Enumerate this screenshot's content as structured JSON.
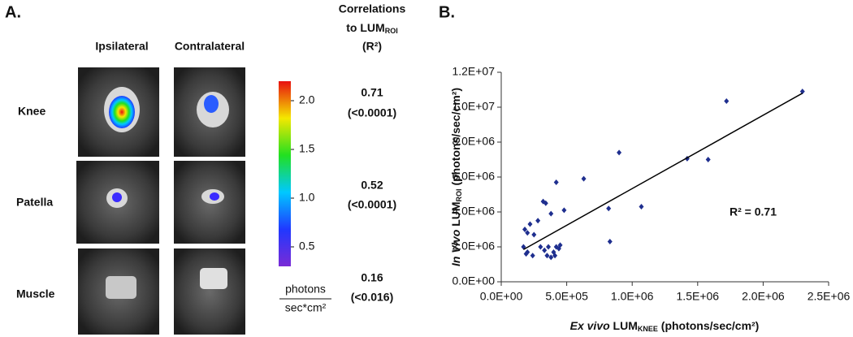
{
  "panel_a": {
    "label": "A.",
    "columns": [
      "Ipsilateral",
      "Contralateral"
    ],
    "rows": [
      "Knee",
      "Patella",
      "Muscle"
    ],
    "colorbar": {
      "lim": [
        0.3,
        2.2
      ],
      "ticks": [
        0.5,
        {
          "value": 1.0,
          "label": "1.0"
        },
        1.5,
        {
          "value": 2.0,
          "label": "2.0"
        }
      ],
      "unit_top": "photons",
      "unit_bottom": "sec*cm²"
    },
    "corr_header": {
      "line1": "Correlations",
      "line2": "to LUM",
      "line2_sub": "ROI",
      "line3": "(R²)"
    },
    "correlations": [
      {
        "r2": "0.71",
        "p": "(<0.0001)"
      },
      {
        "r2": "0.52",
        "p": "(<0.0001)"
      },
      {
        "r2": "0.16",
        "p": "(<0.016)"
      }
    ]
  },
  "chart_data": {
    "type": "scatter",
    "panel_label": "B.",
    "xlabel": {
      "italic": "Ex vivo",
      "main": " LUM",
      "sub": "KNEE",
      "rest": " (photons/sec/cm²)"
    },
    "ylabel": {
      "italic": "In Vivo",
      "main": " LUM",
      "sub": "ROI",
      "rest": " (photons/sec/cm²)"
    },
    "annotation": "R² = 0.71",
    "color": "#1f2f8f",
    "x": [
      2300000,
      1720000,
      1420000,
      1580000,
      1070000,
      630000,
      900000,
      420000,
      820000,
      830000,
      320000,
      340000,
      480000,
      380000,
      280000,
      220000,
      180000,
      200000,
      250000,
      170000,
      200000,
      240000,
      190000,
      300000,
      330000,
      350000,
      380000,
      400000,
      420000,
      450000,
      440000,
      410000,
      360000
    ],
    "values": [
      10900000,
      10350000,
      7050000,
      7000000,
      4300000,
      5900000,
      7400000,
      5700000,
      4200000,
      2300000,
      4600000,
      4500000,
      4100000,
      3900000,
      3500000,
      3300000,
      3000000,
      2800000,
      2700000,
      2000000,
      1700000,
      1500000,
      1600000,
      2000000,
      1800000,
      1500000,
      1400000,
      1700000,
      2000000,
      2100000,
      1900000,
      1500000,
      2000000
    ],
    "fit": {
      "x": [
        170000,
        2300000
      ],
      "y": [
        1850000,
        10800000
      ]
    },
    "xlim": [
      0,
      2500000
    ],
    "xticks": [
      {
        "value": 0,
        "label": "0.0E+00"
      },
      {
        "value": 500000,
        "label": "5.0E+05"
      },
      {
        "value": 1000000,
        "label": "1.0E+06"
      },
      {
        "value": 1500000,
        "label": "1.5E+06"
      },
      {
        "value": 2000000,
        "label": "2.0E+06"
      },
      {
        "value": 2500000,
        "label": "2.5E+06"
      }
    ],
    "ylim": [
      0,
      12000000
    ],
    "yticks": [
      {
        "value": 0,
        "label": "0.0E+00"
      },
      {
        "value": 2000000,
        "label": "2.0E+06"
      },
      {
        "value": 4000000,
        "label": "4.0E+06"
      },
      {
        "value": 6000000,
        "label": "6.0E+06"
      },
      {
        "value": 8000000,
        "label": "8.0E+06"
      },
      {
        "value": 10000000,
        "label": "1.0E+07"
      },
      {
        "value": 12000000,
        "label": "1.2E+07"
      }
    ]
  }
}
